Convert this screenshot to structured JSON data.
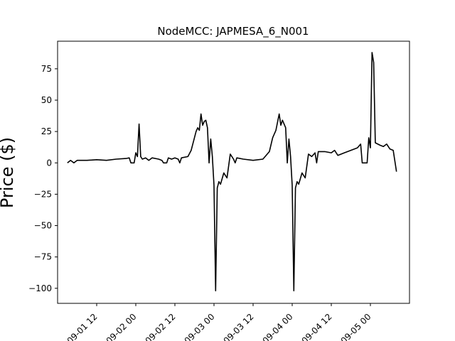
{
  "chart_data": {
    "type": "line",
    "title": "NodeMCC: JAPMESA_6_N001",
    "xlabel": "",
    "ylabel": "Price ($)",
    "ylim": [
      -112,
      97
    ],
    "x_range": [
      "2020-09-01 00:00",
      "2020-09-05 12:00"
    ],
    "x_ticks": [
      "09-01 12",
      "09-02 00",
      "09-02 12",
      "09-03 00",
      "09-03 12",
      "09-04 00",
      "09-04 12",
      "09-05 00"
    ],
    "y_ticks": [
      75,
      50,
      25,
      0,
      -25,
      -50,
      -75,
      -100
    ],
    "grid": false,
    "series": [
      {
        "color": "#000000",
        "points": [
          [
            "2020-09-01 03:00",
            0
          ],
          [
            "2020-09-01 04:00",
            2
          ],
          [
            "2020-09-01 05:00",
            0
          ],
          [
            "2020-09-01 06:00",
            2
          ],
          [
            "2020-09-01 09:00",
            2
          ],
          [
            "2020-09-01 12:00",
            2.5
          ],
          [
            "2020-09-01 15:00",
            2
          ],
          [
            "2020-09-01 18:00",
            3
          ],
          [
            "2020-09-01 21:00",
            3.5
          ],
          [
            "2020-09-01 22:00",
            4
          ],
          [
            "2020-09-01 22:30",
            0
          ],
          [
            "2020-09-01 23:30",
            0
          ],
          [
            "2020-09-02 00:00",
            8
          ],
          [
            "2020-09-02 00:30",
            5
          ],
          [
            "2020-09-02 01:00",
            31
          ],
          [
            "2020-09-02 01:30",
            5
          ],
          [
            "2020-09-02 02:00",
            3
          ],
          [
            "2020-09-02 03:00",
            4
          ],
          [
            "2020-09-02 04:00",
            2
          ],
          [
            "2020-09-02 05:00",
            4
          ],
          [
            "2020-09-02 07:00",
            3
          ],
          [
            "2020-09-02 08:00",
            2
          ],
          [
            "2020-09-02 08:30",
            0
          ],
          [
            "2020-09-02 09:30",
            0
          ],
          [
            "2020-09-02 10:00",
            4
          ],
          [
            "2020-09-02 11:00",
            3
          ],
          [
            "2020-09-02 12:00",
            4
          ],
          [
            "2020-09-02 13:00",
            3
          ],
          [
            "2020-09-02 13:30",
            0
          ],
          [
            "2020-09-02 14:00",
            4
          ],
          [
            "2020-09-02 16:00",
            5
          ],
          [
            "2020-09-02 17:00",
            10
          ],
          [
            "2020-09-02 18:00",
            20
          ],
          [
            "2020-09-02 18:30",
            25
          ],
          [
            "2020-09-02 19:00",
            28
          ],
          [
            "2020-09-02 19:30",
            26
          ],
          [
            "2020-09-02 20:00",
            39
          ],
          [
            "2020-09-02 20:30",
            30
          ],
          [
            "2020-09-02 21:00",
            33
          ],
          [
            "2020-09-02 21:30",
            34
          ],
          [
            "2020-09-02 22:00",
            28
          ],
          [
            "2020-09-02 22:30",
            0
          ],
          [
            "2020-09-02 23:00",
            19
          ],
          [
            "2020-09-02 23:30",
            5
          ],
          [
            "2020-09-03 00:00",
            -18
          ],
          [
            "2020-09-03 00:30",
            -102
          ],
          [
            "2020-09-03 01:00",
            -20
          ],
          [
            "2020-09-03 01:30",
            -15
          ],
          [
            "2020-09-03 02:00",
            -17
          ],
          [
            "2020-09-03 03:00",
            -8
          ],
          [
            "2020-09-03 04:00",
            -12
          ],
          [
            "2020-09-03 05:00",
            7
          ],
          [
            "2020-09-03 06:00",
            3
          ],
          [
            "2020-09-03 06:30",
            0
          ],
          [
            "2020-09-03 07:00",
            4
          ],
          [
            "2020-09-03 09:00",
            3
          ],
          [
            "2020-09-03 12:00",
            2
          ],
          [
            "2020-09-03 15:00",
            3
          ],
          [
            "2020-09-03 17:00",
            9
          ],
          [
            "2020-09-03 18:00",
            20
          ],
          [
            "2020-09-03 19:00",
            26
          ],
          [
            "2020-09-03 20:00",
            39
          ],
          [
            "2020-09-03 20:30",
            30
          ],
          [
            "2020-09-03 21:00",
            34
          ],
          [
            "2020-09-03 22:00",
            28
          ],
          [
            "2020-09-03 22:30",
            0
          ],
          [
            "2020-09-03 23:00",
            19
          ],
          [
            "2020-09-03 23:30",
            5
          ],
          [
            "2020-09-04 00:00",
            -18
          ],
          [
            "2020-09-04 00:30",
            -102
          ],
          [
            "2020-09-04 01:00",
            -20
          ],
          [
            "2020-09-04 01:30",
            -15
          ],
          [
            "2020-09-04 02:00",
            -17
          ],
          [
            "2020-09-04 03:00",
            -8
          ],
          [
            "2020-09-04 04:00",
            -12
          ],
          [
            "2020-09-04 05:00",
            7
          ],
          [
            "2020-09-04 06:00",
            5
          ],
          [
            "2020-09-04 07:00",
            8
          ],
          [
            "2020-09-04 07:30",
            0
          ],
          [
            "2020-09-04 08:00",
            9
          ],
          [
            "2020-09-04 10:00",
            9
          ],
          [
            "2020-09-04 12:00",
            8
          ],
          [
            "2020-09-04 13:00",
            10
          ],
          [
            "2020-09-04 14:00",
            6
          ],
          [
            "2020-09-04 16:00",
            8
          ],
          [
            "2020-09-04 18:00",
            10
          ],
          [
            "2020-09-04 20:00",
            12
          ],
          [
            "2020-09-04 21:00",
            15
          ],
          [
            "2020-09-04 21:30",
            0
          ],
          [
            "2020-09-04 23:00",
            0
          ],
          [
            "2020-09-04 23:30",
            20
          ],
          [
            "2020-09-05 00:00",
            12
          ],
          [
            "2020-09-05 00:30",
            88
          ],
          [
            "2020-09-05 01:00",
            80
          ],
          [
            "2020-09-05 01:30",
            16
          ],
          [
            "2020-09-05 03:00",
            14
          ],
          [
            "2020-09-05 04:00",
            13
          ],
          [
            "2020-09-05 05:00",
            15
          ],
          [
            "2020-09-05 06:00",
            11
          ],
          [
            "2020-09-05 07:00",
            10
          ],
          [
            "2020-09-05 08:00",
            -7
          ]
        ]
      }
    ]
  }
}
